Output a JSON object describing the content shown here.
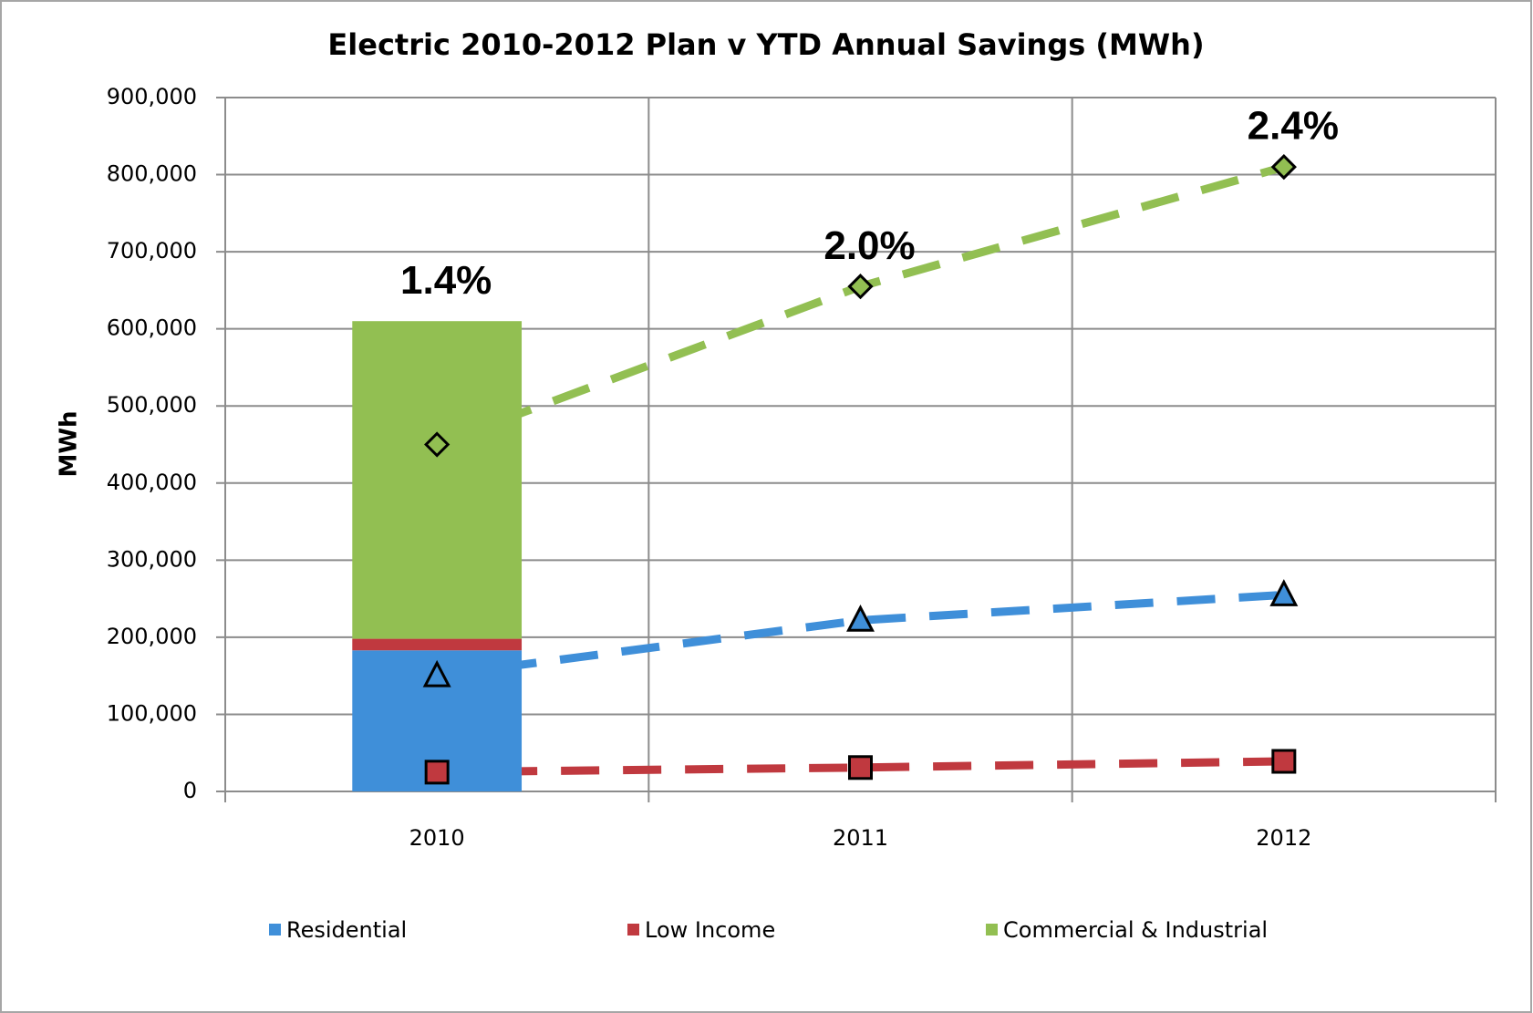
{
  "chart_data": {
    "type": "bar",
    "title": "Electric 2010-2012 Plan v YTD Annual Savings (MWh)",
    "y_label": "MWh",
    "categories": [
      "2010",
      "2011",
      "2012"
    ],
    "series": [
      {
        "name": "Residential",
        "color": "#3f8fd9",
        "values": [
          183000,
          null,
          null
        ],
        "line_values": [
          150000,
          222000,
          255000
        ],
        "marker": "triangle"
      },
      {
        "name": "Low Income",
        "color": "#c0393f",
        "values": [
          15000,
          null,
          null
        ],
        "line_values": [
          25000,
          31000,
          39000
        ],
        "marker": "square"
      },
      {
        "name": "Commercial & Industrial",
        "color": "#92bf52",
        "values": [
          412000,
          null,
          null
        ],
        "line_values": [
          450000,
          655000,
          810000
        ],
        "marker": "diamond"
      }
    ],
    "annotations": [
      "1.4%",
      "2.0%",
      "2.4%"
    ],
    "ylim": [
      0,
      900000
    ],
    "yticks": [
      {
        "value": 0,
        "label": "0"
      },
      {
        "value": 100000,
        "label": "100,000"
      },
      {
        "value": 200000,
        "label": "200,000"
      },
      {
        "value": 300000,
        "label": "300,000"
      },
      {
        "value": 400000,
        "label": "400,000"
      },
      {
        "value": 500000,
        "label": "500,000"
      },
      {
        "value": 600000,
        "label": "600,000"
      },
      {
        "value": 700000,
        "label": "700,000"
      },
      {
        "value": 800000,
        "label": "800,000"
      },
      {
        "value": 900000,
        "label": "900,000"
      }
    ],
    "grid": true,
    "legend": "bottom"
  }
}
